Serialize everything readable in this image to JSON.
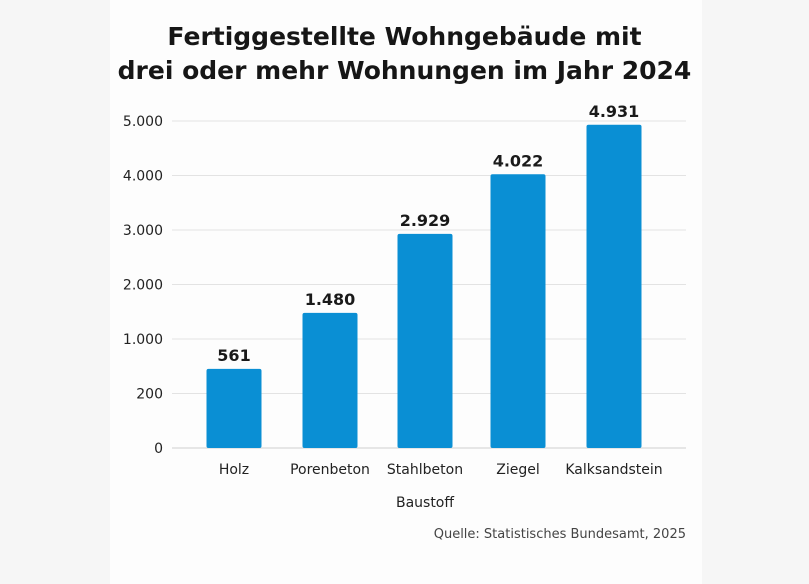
{
  "chart_data": {
    "type": "bar",
    "title_lines": [
      "Fertiggestellte Wohngebäude mit",
      "drei oder mehr Wohnungen im Jahr 2024"
    ],
    "categories": [
      "Holz",
      "Porenbeton",
      "Stahlbeton",
      "Ziegel",
      "Kalksandstein"
    ],
    "values": [
      561,
      1480,
      2929,
      4022,
      4931
    ],
    "data_labels": [
      "561",
      "1.480",
      "2.929",
      "4.022",
      "4.931"
    ],
    "xlabel": "Baustoff",
    "ylabel": "",
    "y_ticks": [
      0,
      200,
      1000,
      2000,
      3000,
      4000,
      5000
    ],
    "y_tick_labels": [
      "0",
      "200",
      "1.000",
      "2.000",
      "3.000",
      "4.000",
      "5.000"
    ],
    "ylim": [
      0,
      5000
    ],
    "grid": true,
    "bar_color": "#0a8fd4",
    "source": "Quelle: Statistisches Bundesamt, 2025"
  }
}
